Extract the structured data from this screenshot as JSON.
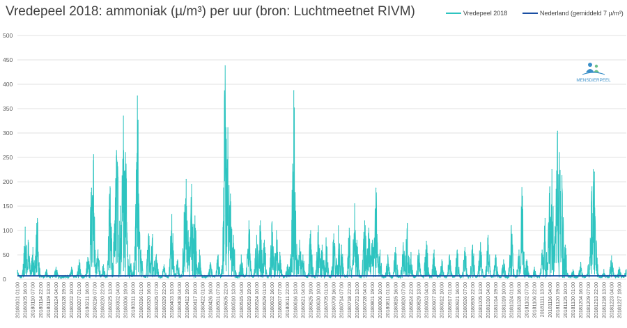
{
  "chart_data": {
    "type": "line",
    "title": "Vredepeel 2018: ammoniak (µ/m³) per uur (bron: Luchtmeetnet RIVM)",
    "xlabel": "",
    "ylabel": "",
    "ylim": [
      0,
      500
    ],
    "yticks": [
      0,
      50,
      100,
      150,
      200,
      250,
      300,
      350,
      400,
      450,
      500
    ],
    "grid": true,
    "legend_position": "top-right",
    "x_tick_labels": [
      "20180101 01:00",
      "20180105 16:00",
      "20180110 07:00",
      "20180114 22:00",
      "20180119 13:00",
      "20180124 04:00",
      "20180128 19:00",
      "20180202 10:00",
      "20180207 01:00",
      "20180211 16:00",
      "20180216 07:00",
      "20180220 22:00",
      "20180225 13:00",
      "20180302 04:00",
      "20180306 19:00",
      "20180311 10:00",
      "20180316 01:00",
      "20180320 16:00",
      "20180325 07:00",
      "20180329 22:00",
      "20180403 13:00",
      "20180408 04:00",
      "20180412 19:00",
      "20180417 10:00",
      "20180422 01:00",
      "20180426 16:00",
      "20180501 07:00",
      "20180505 22:00",
      "20180510 13:00",
      "20180515 04:00",
      "20180519 19:00",
      "20180524 10:00",
      "20180529 01:00",
      "20180602 16:00",
      "20180607 07:00",
      "20180611 22:00",
      "20180616 13:00",
      "20180621 04:00",
      "20180625 19:00",
      "20180630 10:00",
      "20180705 01:00",
      "20180709 16:00",
      "20180714 07:00",
      "20180718 22:00",
      "20180723 13:00",
      "20180728 04:00",
      "20180801 19:00",
      "20180806 10:00",
      "20180811 01:00",
      "20180815 16:00",
      "20180820 07:00",
      "20180824 22:00",
      "20180829 13:00",
      "20180903 04:00",
      "20180907 19:00",
      "20180912 10:00",
      "20180917 01:00",
      "20180921 16:00",
      "20180926 07:00",
      "20180930 22:00",
      "20181005 13:00",
      "20181010 04:00",
      "20181014 19:00",
      "20181019 10:00",
      "20181024 01:00",
      "20181028 16:00",
      "20181102 07:00",
      "20181106 22:00",
      "20181111 13:00",
      "20181116 04:00",
      "20181120 19:00",
      "20181125 10:00",
      "20181130 01:00",
      "20181204 16:00",
      "20181209 07:00",
      "20181213 22:00",
      "20181218 13:00",
      "20181223 04:00",
      "20181227 19:00"
    ],
    "series": [
      {
        "name": "Vredepeel 2018",
        "color": "#2ec4c0",
        "peaks": [
          {
            "x": "20180101 01:00",
            "y": 18
          },
          {
            "x": "20180105 16:00",
            "y": 107
          },
          {
            "x": "20180107 10:00",
            "y": 80
          },
          {
            "x": "20180110 07:00",
            "y": 65
          },
          {
            "x": "20180112 22:00",
            "y": 125
          },
          {
            "x": "20180118 10:00",
            "y": 20
          },
          {
            "x": "20180124 04:00",
            "y": 25
          },
          {
            "x": "20180202 10:00",
            "y": 25
          },
          {
            "x": "20180207 01:00",
            "y": 40
          },
          {
            "x": "20180212 04:00",
            "y": 45
          },
          {
            "x": "20180214 10:00",
            "y": 187
          },
          {
            "x": "20180215 16:00",
            "y": 256
          },
          {
            "x": "20180218 07:00",
            "y": 60
          },
          {
            "x": "20180221 13:00",
            "y": 30
          },
          {
            "x": "20180225 13:00",
            "y": 190
          },
          {
            "x": "20180228 10:00",
            "y": 120
          },
          {
            "x": "20180301 10:00",
            "y": 264
          },
          {
            "x": "20180301 22:00",
            "y": 240
          },
          {
            "x": "20180303 16:00",
            "y": 150
          },
          {
            "x": "20180305 04:00",
            "y": 137
          },
          {
            "x": "20180305 13:00",
            "y": 335
          },
          {
            "x": "20180306 19:00",
            "y": 260
          },
          {
            "x": "20180309 10:00",
            "y": 50
          },
          {
            "x": "20180312 16:00",
            "y": 70
          },
          {
            "x": "20180313 22:00",
            "y": 376
          },
          {
            "x": "20180314 16:00",
            "y": 175
          },
          {
            "x": "20180316 01:00",
            "y": 60
          },
          {
            "x": "20180320 16:00",
            "y": 93
          },
          {
            "x": "20180323 01:00",
            "y": 92
          },
          {
            "x": "20180325 07:00",
            "y": 50
          },
          {
            "x": "20180329 22:00",
            "y": 30
          },
          {
            "x": "20180403 13:00",
            "y": 133
          },
          {
            "x": "20180407 01:00",
            "y": 40
          },
          {
            "x": "20180411 07:00",
            "y": 153
          },
          {
            "x": "20180412 04:00",
            "y": 205
          },
          {
            "x": "20180413 10:00",
            "y": 100
          },
          {
            "x": "20180415 10:00",
            "y": 195
          },
          {
            "x": "20180417 10:00",
            "y": 130
          },
          {
            "x": "20180420 04:00",
            "y": 60
          },
          {
            "x": "20180426 16:00",
            "y": 35
          },
          {
            "x": "20180501 07:00",
            "y": 50
          },
          {
            "x": "20180504 22:00",
            "y": 130
          },
          {
            "x": "20180505 13:00",
            "y": 438
          },
          {
            "x": "20180506 10:00",
            "y": 150
          },
          {
            "x": "20180507 04:00",
            "y": 311
          },
          {
            "x": "20180508 16:00",
            "y": 175
          },
          {
            "x": "20180510 13:00",
            "y": 90
          },
          {
            "x": "20180515 04:00",
            "y": 50
          },
          {
            "x": "20180519 19:00",
            "y": 120
          },
          {
            "x": "20180524 10:00",
            "y": 90
          },
          {
            "x": "20180526 16:00",
            "y": 120
          },
          {
            "x": "20180529 01:00",
            "y": 80
          },
          {
            "x": "20180602 16:00",
            "y": 118
          },
          {
            "x": "20180605 07:00",
            "y": 100
          },
          {
            "x": "20180607 07:00",
            "y": 55
          },
          {
            "x": "20180611 22:00",
            "y": 30
          },
          {
            "x": "20180614 10:00",
            "y": 100
          },
          {
            "x": "20180615 16:00",
            "y": 387
          },
          {
            "x": "20180616 13:00",
            "y": 150
          },
          {
            "x": "20180619 04:00",
            "y": 80
          },
          {
            "x": "20180621 04:00",
            "y": 50
          },
          {
            "x": "20180625 19:00",
            "y": 100
          },
          {
            "x": "20180630 10:00",
            "y": 110
          },
          {
            "x": "20180702 16:00",
            "y": 70
          },
          {
            "x": "20180705 01:00",
            "y": 85
          },
          {
            "x": "20180709 16:00",
            "y": 93
          },
          {
            "x": "20180712 10:00",
            "y": 110
          },
          {
            "x": "20180714 07:00",
            "y": 70
          },
          {
            "x": "20180718 22:00",
            "y": 105
          },
          {
            "x": "20180722 04:00",
            "y": 155
          },
          {
            "x": "20180723 13:00",
            "y": 80
          },
          {
            "x": "20180728 04:00",
            "y": 120
          },
          {
            "x": "20180730 16:00",
            "y": 105
          },
          {
            "x": "20180801 19:00",
            "y": 80
          },
          {
            "x": "20180803 22:00",
            "y": 187
          },
          {
            "x": "20180806 10:00",
            "y": 60
          },
          {
            "x": "20180811 01:00",
            "y": 50
          },
          {
            "x": "20180815 16:00",
            "y": 65
          },
          {
            "x": "20180820 07:00",
            "y": 75
          },
          {
            "x": "20180822 16:00",
            "y": 115
          },
          {
            "x": "20180824 22:00",
            "y": 55
          },
          {
            "x": "20180829 13:00",
            "y": 60
          },
          {
            "x": "20180903 04:00",
            "y": 78
          },
          {
            "x": "20180907 19:00",
            "y": 60
          },
          {
            "x": "20180912 10:00",
            "y": 40
          },
          {
            "x": "20180917 01:00",
            "y": 50
          },
          {
            "x": "20180921 16:00",
            "y": 60
          },
          {
            "x": "20180926 07:00",
            "y": 65
          },
          {
            "x": "20180930 22:00",
            "y": 70
          },
          {
            "x": "20181005 13:00",
            "y": 75
          },
          {
            "x": "20181010 04:00",
            "y": 90
          },
          {
            "x": "20181014 19:00",
            "y": 50
          },
          {
            "x": "20181019 10:00",
            "y": 40
          },
          {
            "x": "20181024 01:00",
            "y": 110
          },
          {
            "x": "20181028 16:00",
            "y": 60
          },
          {
            "x": "20181030 10:00",
            "y": 188
          },
          {
            "x": "20181102 07:00",
            "y": 40
          },
          {
            "x": "20181106 22:00",
            "y": 25
          },
          {
            "x": "20181111 13:00",
            "y": 60
          },
          {
            "x": "20181113 07:00",
            "y": 125
          },
          {
            "x": "20181116 04:00",
            "y": 190
          },
          {
            "x": "20181117 10:00",
            "y": 225
          },
          {
            "x": "20181119 22:00",
            "y": 185
          },
          {
            "x": "20181120 19:00",
            "y": 304
          },
          {
            "x": "20181121 22:00",
            "y": 260
          },
          {
            "x": "20181123 10:00",
            "y": 213
          },
          {
            "x": "20181125 10:00",
            "y": 70
          },
          {
            "x": "20181130 01:00",
            "y": 20
          },
          {
            "x": "20181204 16:00",
            "y": 35
          },
          {
            "x": "20181209 07:00",
            "y": 30
          },
          {
            "x": "20181211 10:00",
            "y": 190
          },
          {
            "x": "20181212 04:00",
            "y": 225
          },
          {
            "x": "20181212 22:00",
            "y": 220
          },
          {
            "x": "20181213 22:00",
            "y": 60
          },
          {
            "x": "20181218 13:00",
            "y": 20
          },
          {
            "x": "20181223 04:00",
            "y": 48
          },
          {
            "x": "20181227 19:00",
            "y": 25
          },
          {
            "x": "20181231 23:00",
            "y": 20
          }
        ]
      },
      {
        "name": "Nederland (gemiddeld 7 µ/m³)",
        "color": "#1a4fa3",
        "constant": 7
      }
    ]
  },
  "logo_text": "MENSDIERPEEL"
}
